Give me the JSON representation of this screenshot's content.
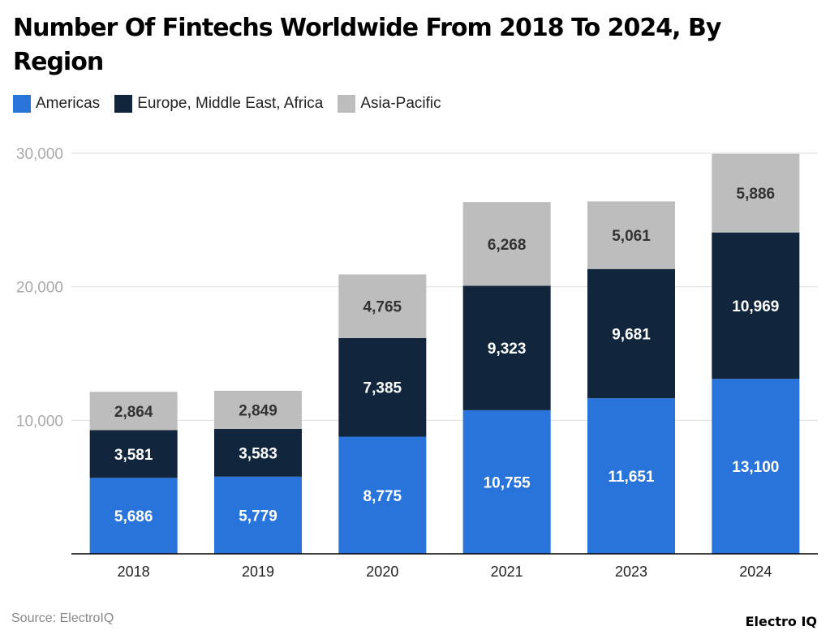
{
  "chart_data": {
    "type": "bar",
    "stacked": true,
    "title": "Number Of Fintechs Worldwide From 2018 To 2024, By Region",
    "categories": [
      "2018",
      "2019",
      "2020",
      "2021",
      "2023",
      "2024"
    ],
    "series": [
      {
        "name": "Americas",
        "color": "#2874DB",
        "label_color": "#ffffff",
        "values": [
          5686,
          5779,
          8775,
          10755,
          11651,
          13100
        ]
      },
      {
        "name": "Europe, Middle East, Africa",
        "color": "#11263D",
        "label_color": "#ffffff",
        "values": [
          3581,
          3583,
          7385,
          9323,
          9681,
          10969
        ]
      },
      {
        "name": "Asia-Pacific",
        "color": "#BDBDBD",
        "label_color": "#333333",
        "values": [
          2864,
          2849,
          4765,
          6268,
          5061,
          5886
        ]
      }
    ],
    "ylim": [
      0,
      30000
    ],
    "yticks": [
      10000,
      20000,
      30000
    ],
    "ytick_labels": [
      "10,000",
      "20,000",
      "30,000"
    ],
    "grid": true,
    "legend": "top-left",
    "xlabel": "",
    "ylabel": ""
  },
  "source": "Source: ElectroIQ",
  "logo": "Electro IQ"
}
